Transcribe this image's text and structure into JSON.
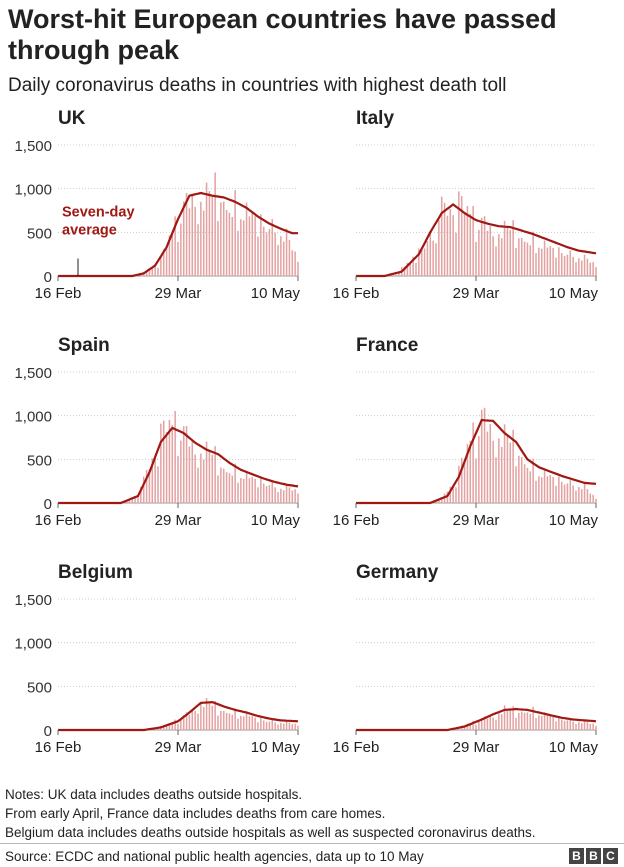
{
  "title": "Worst-hit European countries have passed through peak",
  "subtitle": "Daily coronavirus deaths in countries with highest death toll",
  "notes": [
    "Notes: UK data includes deaths outside hospitals.",
    "From early April, France data includes deaths from care homes.",
    "Belgium data includes deaths outside hospitals as well as suspected coronavirus deaths."
  ],
  "source": "Source: ECDC and national public health agencies, data up to 10 May",
  "logo": [
    "B",
    "B",
    "C"
  ],
  "colors": {
    "bars": "#e3a3a3",
    "line": "#a01813",
    "annotation": "#a01813",
    "grid": "#cccccc"
  },
  "chart_data": [
    {
      "type": "bar",
      "title": "UK",
      "x_ticks": [
        "16 Feb",
        "29 Mar",
        "10 May"
      ],
      "y_ticks": [
        "1,500",
        "1,000",
        "500",
        "0"
      ],
      "ylim": [
        0,
        1500
      ],
      "x_range": [
        "16 Feb",
        "10 May"
      ],
      "annotation": {
        "text": [
          "Seven-day",
          "average"
        ],
        "at": "23 Feb"
      },
      "daily_keyframes": [
        [
          0,
          0
        ],
        [
          24,
          0
        ],
        [
          30,
          40
        ],
        [
          36,
          180
        ],
        [
          40,
          500
        ],
        [
          44,
          800
        ],
        [
          48,
          1000
        ],
        [
          52,
          950
        ],
        [
          56,
          1050
        ],
        [
          60,
          900
        ],
        [
          64,
          850
        ],
        [
          68,
          800
        ],
        [
          72,
          700
        ],
        [
          76,
          620
        ],
        [
          80,
          500
        ],
        [
          84,
          270
        ]
      ],
      "average_keyframes": [
        [
          0,
          0
        ],
        [
          26,
          0
        ],
        [
          30,
          30
        ],
        [
          34,
          120
        ],
        [
          38,
          330
        ],
        [
          42,
          650
        ],
        [
          46,
          920
        ],
        [
          50,
          950
        ],
        [
          54,
          920
        ],
        [
          58,
          900
        ],
        [
          62,
          850
        ],
        [
          66,
          780
        ],
        [
          70,
          680
        ],
        [
          74,
          600
        ],
        [
          78,
          540
        ],
        [
          82,
          490
        ]
      ]
    },
    {
      "type": "bar",
      "title": "Italy",
      "x_ticks": [
        "16 Feb",
        "29 Mar",
        "10 May"
      ],
      "y_ticks": [],
      "ylim": [
        0,
        1500
      ],
      "x_range": [
        "16 Feb",
        "10 May"
      ],
      "daily_keyframes": [
        [
          0,
          0
        ],
        [
          8,
          0
        ],
        [
          14,
          30
        ],
        [
          20,
          200
        ],
        [
          26,
          500
        ],
        [
          30,
          750
        ],
        [
          34,
          850
        ],
        [
          38,
          750
        ],
        [
          42,
          650
        ],
        [
          46,
          600
        ],
        [
          50,
          550
        ],
        [
          54,
          570
        ],
        [
          58,
          500
        ],
        [
          62,
          450
        ],
        [
          66,
          400
        ],
        [
          70,
          350
        ],
        [
          74,
          300
        ],
        [
          78,
          250
        ],
        [
          82,
          200
        ],
        [
          84,
          170
        ]
      ],
      "average_keyframes": [
        [
          0,
          0
        ],
        [
          10,
          0
        ],
        [
          16,
          50
        ],
        [
          22,
          250
        ],
        [
          26,
          500
        ],
        [
          30,
          720
        ],
        [
          34,
          820
        ],
        [
          38,
          720
        ],
        [
          42,
          640
        ],
        [
          46,
          600
        ],
        [
          50,
          570
        ],
        [
          54,
          560
        ],
        [
          58,
          520
        ],
        [
          62,
          480
        ],
        [
          66,
          430
        ],
        [
          70,
          380
        ],
        [
          74,
          330
        ],
        [
          78,
          290
        ],
        [
          82,
          270
        ],
        [
          84,
          260
        ]
      ]
    },
    {
      "type": "bar",
      "title": "Spain",
      "x_ticks": [
        "16 Feb",
        "29 Mar",
        "10 May"
      ],
      "y_ticks": [
        "1,500",
        "1,000",
        "500",
        "0"
      ],
      "ylim": [
        0,
        1500
      ],
      "x_range": [
        "16 Feb",
        "10 May"
      ],
      "daily_keyframes": [
        [
          0,
          0
        ],
        [
          20,
          0
        ],
        [
          26,
          40
        ],
        [
          30,
          250
        ],
        [
          34,
          650
        ],
        [
          38,
          850
        ],
        [
          42,
          900
        ],
        [
          46,
          750
        ],
        [
          50,
          650
        ],
        [
          54,
          600
        ],
        [
          58,
          450
        ],
        [
          62,
          400
        ],
        [
          66,
          350
        ],
        [
          70,
          300
        ],
        [
          74,
          250
        ],
        [
          78,
          200
        ],
        [
          84,
          180
        ]
      ],
      "average_keyframes": [
        [
          0,
          0
        ],
        [
          22,
          0
        ],
        [
          28,
          80
        ],
        [
          32,
          350
        ],
        [
          36,
          700
        ],
        [
          40,
          860
        ],
        [
          44,
          800
        ],
        [
          48,
          690
        ],
        [
          52,
          610
        ],
        [
          56,
          560
        ],
        [
          60,
          460
        ],
        [
          64,
          380
        ],
        [
          68,
          330
        ],
        [
          72,
          280
        ],
        [
          76,
          240
        ],
        [
          80,
          210
        ],
        [
          84,
          190
        ]
      ]
    },
    {
      "type": "bar",
      "title": "France",
      "x_ticks": [
        "16 Feb",
        "29 Mar",
        "10 May"
      ],
      "y_ticks": [],
      "ylim": [
        0,
        1500
      ],
      "x_range": [
        "16 Feb",
        "10 May"
      ],
      "daily_keyframes": [
        [
          0,
          0
        ],
        [
          24,
          0
        ],
        [
          30,
          50
        ],
        [
          36,
          350
        ],
        [
          40,
          700
        ],
        [
          44,
          1000
        ],
        [
          48,
          900
        ],
        [
          52,
          800
        ],
        [
          56,
          700
        ],
        [
          60,
          500
        ],
        [
          64,
          400
        ],
        [
          68,
          350
        ],
        [
          72,
          300
        ],
        [
          76,
          250
        ],
        [
          80,
          200
        ],
        [
          84,
          80
        ]
      ],
      "average_keyframes": [
        [
          0,
          0
        ],
        [
          26,
          0
        ],
        [
          32,
          80
        ],
        [
          36,
          300
        ],
        [
          40,
          650
        ],
        [
          44,
          950
        ],
        [
          48,
          940
        ],
        [
          52,
          800
        ],
        [
          56,
          700
        ],
        [
          60,
          500
        ],
        [
          64,
          410
        ],
        [
          68,
          360
        ],
        [
          72,
          310
        ],
        [
          76,
          270
        ],
        [
          80,
          230
        ],
        [
          84,
          220
        ]
      ]
    },
    {
      "type": "bar",
      "title": "Belgium",
      "x_ticks": [
        "16 Feb",
        "29 Mar",
        "10 May"
      ],
      "y_ticks": [
        "1,500",
        "1,000",
        "500",
        "0"
      ],
      "ylim": [
        0,
        1500
      ],
      "x_range": [
        "16 Feb",
        "10 May"
      ],
      "daily_keyframes": [
        [
          0,
          0
        ],
        [
          28,
          0
        ],
        [
          34,
          20
        ],
        [
          40,
          80
        ],
        [
          46,
          200
        ],
        [
          50,
          350
        ],
        [
          54,
          300
        ],
        [
          58,
          250
        ],
        [
          62,
          220
        ],
        [
          66,
          200
        ],
        [
          70,
          150
        ],
        [
          74,
          120
        ],
        [
          78,
          100
        ],
        [
          84,
          80
        ]
      ],
      "average_keyframes": [
        [
          0,
          0
        ],
        [
          30,
          0
        ],
        [
          36,
          30
        ],
        [
          42,
          100
        ],
        [
          46,
          200
        ],
        [
          50,
          310
        ],
        [
          54,
          320
        ],
        [
          58,
          270
        ],
        [
          62,
          230
        ],
        [
          66,
          200
        ],
        [
          70,
          160
        ],
        [
          74,
          130
        ],
        [
          78,
          110
        ],
        [
          84,
          100
        ]
      ]
    },
    {
      "type": "bar",
      "title": "Germany",
      "x_ticks": [
        "16 Feb",
        "29 Mar",
        "10 May"
      ],
      "y_ticks": [],
      "ylim": [
        0,
        1500
      ],
      "x_range": [
        "16 Feb",
        "10 May"
      ],
      "daily_keyframes": [
        [
          0,
          0
        ],
        [
          30,
          0
        ],
        [
          36,
          30
        ],
        [
          42,
          100
        ],
        [
          48,
          180
        ],
        [
          52,
          250
        ],
        [
          56,
          230
        ],
        [
          60,
          250
        ],
        [
          64,
          220
        ],
        [
          68,
          180
        ],
        [
          72,
          150
        ],
        [
          76,
          120
        ],
        [
          80,
          100
        ],
        [
          84,
          80
        ]
      ],
      "average_keyframes": [
        [
          0,
          0
        ],
        [
          32,
          0
        ],
        [
          38,
          40
        ],
        [
          44,
          120
        ],
        [
          48,
          180
        ],
        [
          52,
          230
        ],
        [
          56,
          240
        ],
        [
          60,
          230
        ],
        [
          64,
          200
        ],
        [
          68,
          170
        ],
        [
          72,
          140
        ],
        [
          76,
          120
        ],
        [
          80,
          110
        ],
        [
          84,
          100
        ]
      ]
    }
  ]
}
